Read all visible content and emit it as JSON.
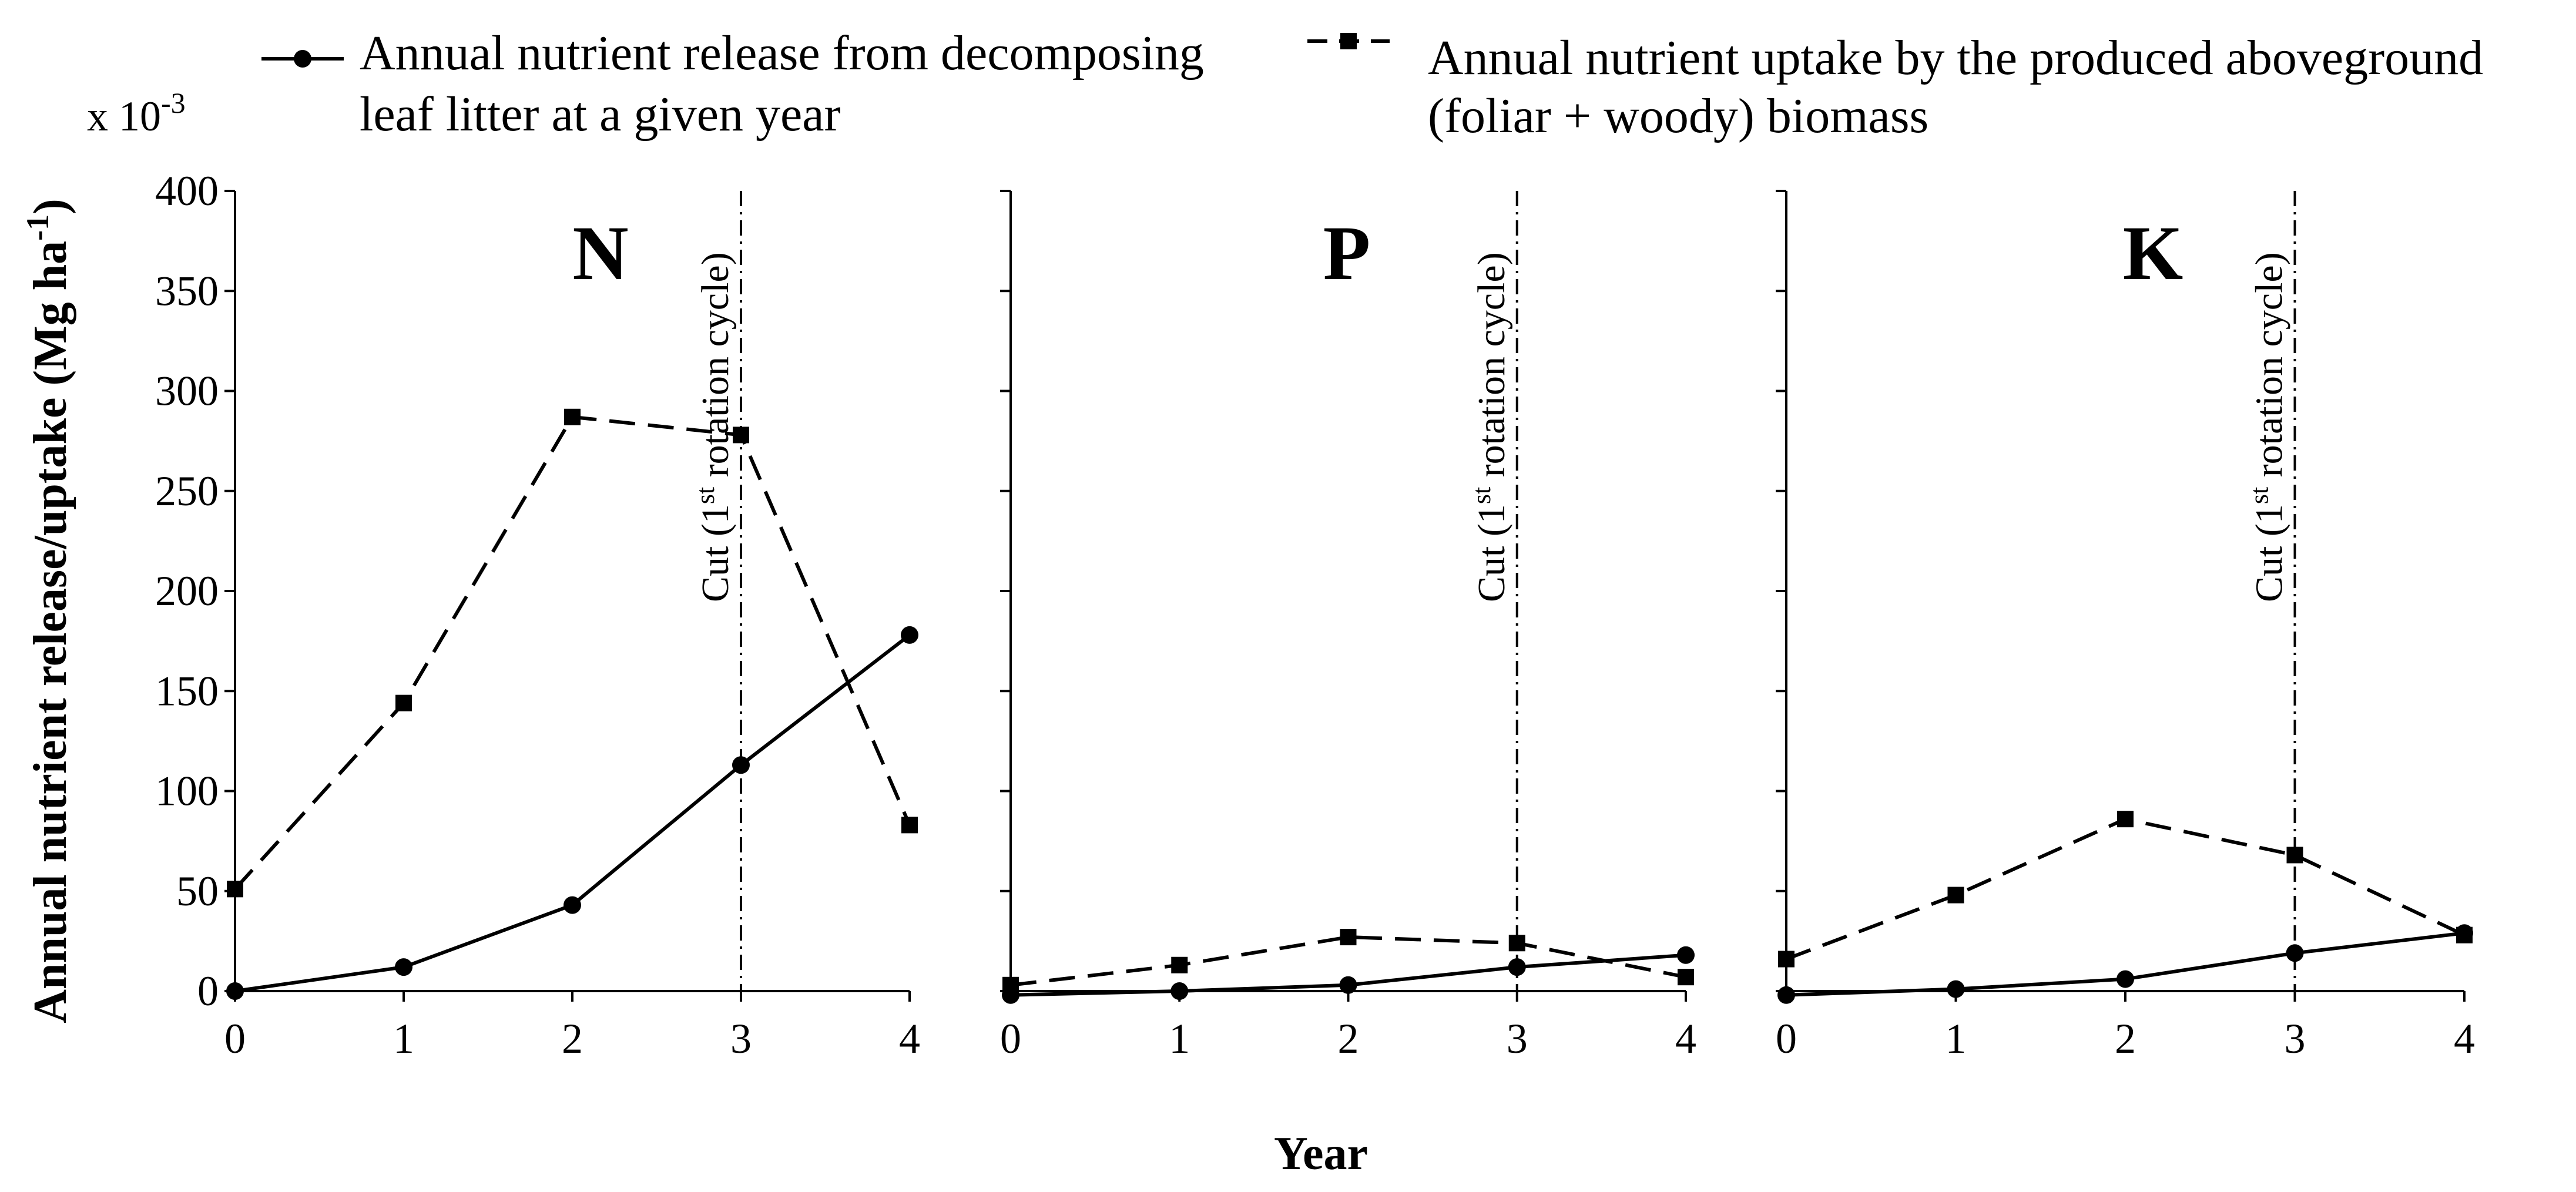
{
  "figure": {
    "y_axis_label_main": "Annual nutrient release/uptake (Mg ha",
    "y_axis_label_sup": "-1",
    "y_axis_label_end": ")",
    "multiplier_base": "x 10",
    "multiplier_exp": "-3",
    "x_axis_label": "Year"
  },
  "legend": {
    "release_line1": "Annual nutrient release from decomposing",
    "release_line2": "leaf litter at a given year",
    "uptake_line1": "Annual nutrient uptake by the produced aboveground",
    "uptake_line2": "(foliar + woody) biomass"
  },
  "cut_label": {
    "pre": "Cut (1",
    "sup": "st",
    "post": " rotation cycle)"
  },
  "chart_data": [
    {
      "type": "line",
      "title": "N",
      "xlabel": "Year",
      "ylabel": "Annual nutrient release/uptake (Mg ha-1) x 10-3",
      "x": [
        0,
        1,
        2,
        3,
        4
      ],
      "xlim": [
        0,
        4
      ],
      "ylim": [
        0,
        400
      ],
      "yticks": [
        0,
        50,
        100,
        150,
        200,
        250,
        300,
        350,
        400
      ],
      "cut_year": 3,
      "series": [
        {
          "name": "Annual nutrient release from decomposing leaf litter at a given year",
          "style": "solid",
          "marker": "circle",
          "values": [
            0,
            12,
            43,
            113,
            178
          ]
        },
        {
          "name": "Annual nutrient uptake by the produced aboveground (foliar + woody) biomass",
          "style": "dashed",
          "marker": "square",
          "values": [
            51,
            144,
            287,
            278,
            83
          ]
        }
      ]
    },
    {
      "type": "line",
      "title": "P",
      "xlabel": "Year",
      "x": [
        0,
        1,
        2,
        3,
        4
      ],
      "xlim": [
        0,
        4
      ],
      "ylim": [
        0,
        400
      ],
      "cut_year": 3,
      "series": [
        {
          "name": "Annual nutrient release from decomposing leaf litter at a given year",
          "style": "solid",
          "marker": "circle",
          "values": [
            -2,
            0,
            3,
            12,
            18
          ]
        },
        {
          "name": "Annual nutrient uptake by the produced aboveground (foliar + woody) biomass",
          "style": "dashed",
          "marker": "square",
          "values": [
            3,
            13,
            27,
            24,
            7
          ]
        }
      ]
    },
    {
      "type": "line",
      "title": "K",
      "xlabel": "Year",
      "x": [
        0,
        1,
        2,
        3,
        4
      ],
      "xlim": [
        0,
        4
      ],
      "ylim": [
        0,
        400
      ],
      "cut_year": 3,
      "series": [
        {
          "name": "Annual nutrient release from decomposing leaf litter at a given year",
          "style": "solid",
          "marker": "circle",
          "values": [
            -2,
            1,
            6,
            19,
            29
          ]
        },
        {
          "name": "Annual nutrient uptake by the produced aboveground (foliar + woody) biomass",
          "style": "dashed",
          "marker": "square",
          "values": [
            16,
            48,
            86,
            68,
            28
          ]
        }
      ]
    }
  ]
}
